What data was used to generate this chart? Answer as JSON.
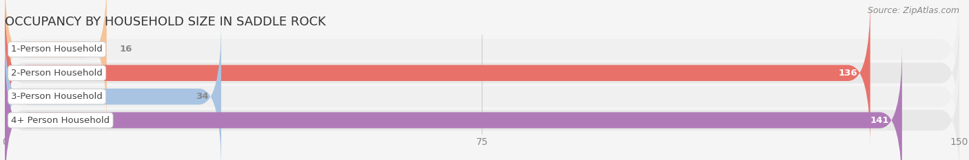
{
  "title": "OCCUPANCY BY HOUSEHOLD SIZE IN SADDLE ROCK",
  "source": "Source: ZipAtlas.com",
  "categories": [
    "1-Person Household",
    "2-Person Household",
    "3-Person Household",
    "4+ Person Household"
  ],
  "values": [
    16,
    136,
    34,
    141
  ],
  "bar_colors": [
    "#f5c49a",
    "#e8726a",
    "#a8c4e2",
    "#b07ab8"
  ],
  "label_colors": [
    "#555555",
    "#ffffff",
    "#555555",
    "#ffffff"
  ],
  "value_colors": [
    "#888888",
    "#ffffff",
    "#888888",
    "#ffffff"
  ],
  "xlim": [
    0,
    150
  ],
  "xticks": [
    0,
    75,
    150
  ],
  "row_colors": [
    "#f0f0f0",
    "#e8e8e8",
    "#f0f0f0",
    "#e8e8e8"
  ],
  "background_color": "#f5f5f5",
  "title_fontsize": 13,
  "tick_fontsize": 10,
  "label_fontsize": 9.5,
  "value_fontsize": 9.5,
  "source_fontsize": 9
}
